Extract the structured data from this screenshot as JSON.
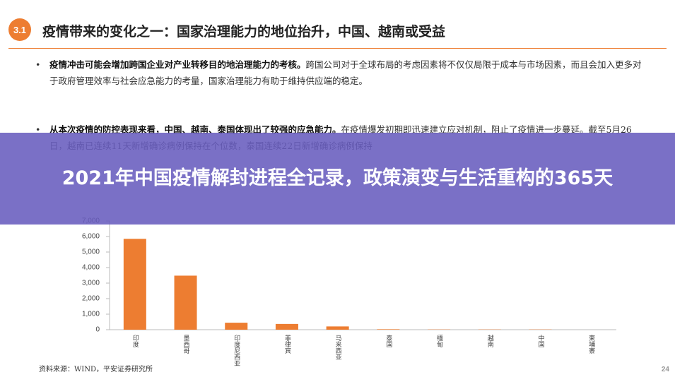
{
  "slide": {
    "badge": "3.1",
    "title": "疫情带来的变化之一：国家治理能力的地位抬升，中国、越南或受益",
    "bullets": [
      {
        "bold": "疫情冲击可能会增加跨国企业对产业转移目的地治理能力的考核。",
        "text": "跨国公司对于全球布局的考虑因素将不仅仅局限于成本与市场因素，而且会加入更多对于政府管理效率与社会应急能力的考量，国家治理能力有助于维持供应端的稳定。"
      },
      {
        "bold": "从本次疫情的防控表现来看，中国、越南、泰国体现出了较强的应急能力。",
        "text": "在疫情爆发初期即迅速建立应对机制，阻止了疫情进一步蔓延。截至5月26日，越南已连续11天新增确诊病例保持在个位数，泰国连续22日新增确诊病例保持"
      }
    ],
    "banner": "2021年中国疫情解封进程全记录，政策演变与生活重构的365天",
    "source": "资料来源：WIND，平安证券研究所",
    "page_number": "24"
  },
  "chart_data": {
    "type": "bar",
    "categories": [
      "印度",
      "墨西哥",
      "印度尼西亚",
      "菲律宾",
      "马来西亚",
      "泰国",
      "缅甸",
      "越南",
      "中国",
      "柬埔寨"
    ],
    "values": [
      5850,
      3480,
      450,
      370,
      210,
      30,
      15,
      15,
      15,
      0
    ],
    "color": "#ed7d31",
    "ylim": [
      0,
      7000
    ],
    "yticks": [
      0,
      {
        "value": 1000,
        "label": "1,000"
      },
      {
        "value": 2000,
        "label": "2,000"
      },
      {
        "value": 3000,
        "label": "3,000"
      },
      {
        "value": 4000,
        "label": "4,000"
      },
      {
        "value": 5000,
        "label": "5,000"
      },
      {
        "value": 6000,
        "label": "6,000"
      },
      {
        "value": 7000,
        "label": "7,000"
      }
    ]
  }
}
